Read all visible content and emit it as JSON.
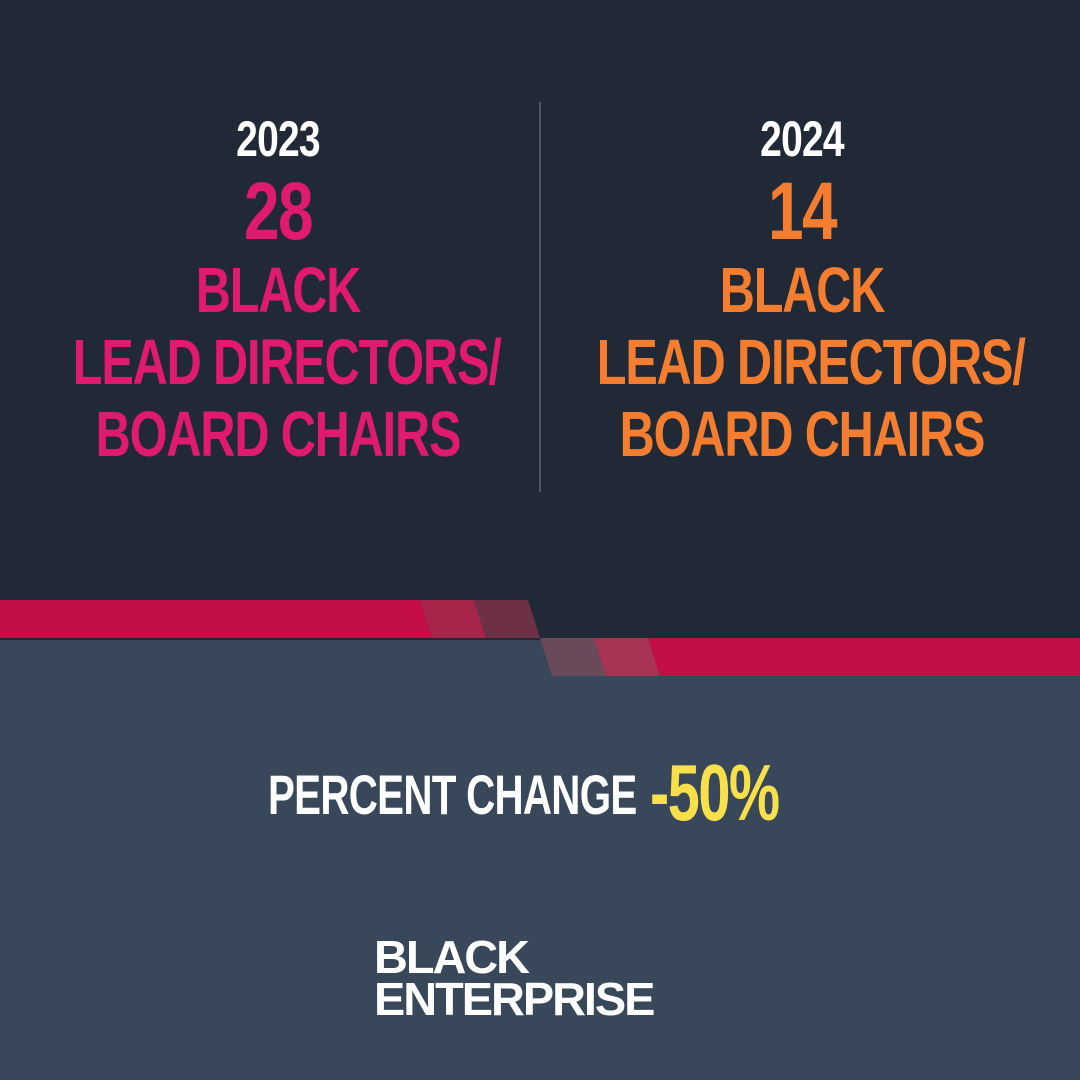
{
  "colors": {
    "top_background": "#212936",
    "bottom_background": "#38475a",
    "accent_2023": "#e01a6e",
    "accent_2024": "#f47d30",
    "percent_change": "#f7e04c",
    "band_red": "#c40f46"
  },
  "left": {
    "year": "2023",
    "count": "28",
    "line1": "BLACK",
    "line2": "LEAD DIRECTORS/",
    "line3": "BOARD CHAIRS"
  },
  "right": {
    "year": "2024",
    "count": "14",
    "line1": "BLACK",
    "line2": "LEAD DIRECTORS/",
    "line3": "BOARD CHAIRS"
  },
  "percent_change": {
    "label": "PERCENT CHANGE",
    "value": "-50%"
  },
  "logo": {
    "line1": "BLACK",
    "line2": "ENTERPRISE"
  }
}
